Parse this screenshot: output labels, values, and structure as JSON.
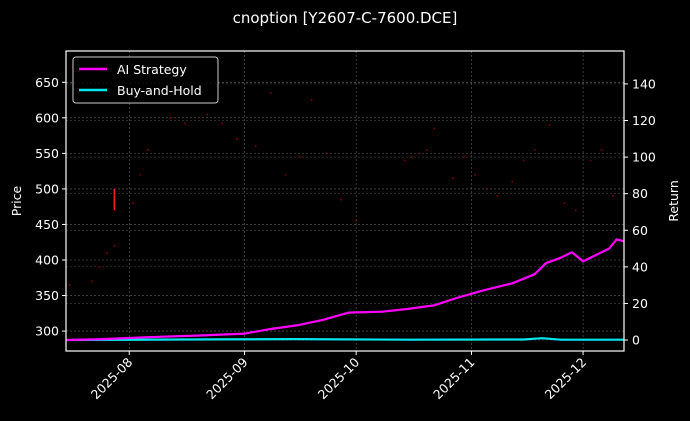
{
  "figure": {
    "background": "#000000",
    "title": "cnoption [Y2607-C-7600.DCE]"
  },
  "legend": {
    "items": [
      {
        "label": "AI Strategy",
        "color": "#ff00ff"
      },
      {
        "label": "Buy-and-Hold",
        "color": "#00e5ee"
      }
    ]
  },
  "axes": {
    "left": {
      "label": "Price",
      "ticks": [
        "300",
        "350",
        "400",
        "450",
        "500",
        "550",
        "600",
        "650"
      ]
    },
    "right": {
      "label": "Return",
      "ticks": [
        "0",
        "20",
        "40",
        "60",
        "80",
        "100",
        "120",
        "140"
      ]
    },
    "x": {
      "ticks": [
        "2025-08",
        "2025-09",
        "2025-10",
        "2025-11",
        "2025-12"
      ]
    }
  },
  "chart_data": {
    "type": "line",
    "title": "cnoption [Y2607-C-7600.DCE]",
    "xlabel": "",
    "ylabel": "Price",
    "ylabel_right": "Return",
    "x_ticks": [
      "2025-08",
      "2025-09",
      "2025-10",
      "2025-11",
      "2025-12"
    ],
    "xlim": [
      "2025-07-15",
      "2025-12-12"
    ],
    "ylim": [
      272,
      694
    ],
    "ylim_right": [
      -6,
      158
    ],
    "grid": true,
    "legend_position": "upper left",
    "series": [
      {
        "name": "AI Strategy",
        "axis": "right",
        "color": "#ff00ff",
        "x": [
          "2025-07-15",
          "2025-07-25",
          "2025-08-05",
          "2025-08-20",
          "2025-09-01",
          "2025-09-08",
          "2025-09-15",
          "2025-09-22",
          "2025-09-29",
          "2025-10-08",
          "2025-10-15",
          "2025-10-22",
          "2025-10-28",
          "2025-11-04",
          "2025-11-12",
          "2025-11-18",
          "2025-11-21",
          "2025-11-25",
          "2025-11-28",
          "2025-12-01",
          "2025-12-05",
          "2025-12-08",
          "2025-12-10",
          "2025-12-12"
        ],
        "values": [
          0,
          0.5,
          1.5,
          2.5,
          3.5,
          6,
          8,
          11,
          15,
          15.5,
          17,
          19,
          23,
          27,
          31,
          36,
          42,
          45,
          48,
          43,
          47,
          50,
          55,
          54
        ]
      },
      {
        "name": "Buy-and-Hold",
        "axis": "right",
        "color": "#00e5ee",
        "x": [
          "2025-07-15",
          "2025-08-15",
          "2025-09-15",
          "2025-10-15",
          "2025-11-15",
          "2025-11-20",
          "2025-11-25",
          "2025-12-12"
        ],
        "values": [
          0,
          0.3,
          0.5,
          0.2,
          0.3,
          1,
          0.2,
          0.2
        ]
      },
      {
        "name": "Price",
        "axis": "left",
        "type": "scatter",
        "color": "#8b0000",
        "note": "faint dark-red price markers, sparse",
        "x": [
          "2025-07-16",
          "2025-07-22",
          "2025-07-24",
          "2025-07-26",
          "2025-07-28",
          "2025-08-02",
          "2025-08-04",
          "2025-08-06",
          "2025-08-12",
          "2025-08-16",
          "2025-08-22",
          "2025-08-26",
          "2025-08-30",
          "2025-09-04",
          "2025-09-08",
          "2025-09-12",
          "2025-09-16",
          "2025-09-19",
          "2025-09-23",
          "2025-09-27",
          "2025-10-01",
          "2025-10-14",
          "2025-10-16",
          "2025-10-18",
          "2025-10-20",
          "2025-10-22",
          "2025-10-27",
          "2025-10-30",
          "2025-11-02",
          "2025-11-05",
          "2025-11-08",
          "2025-11-12",
          "2025-11-15",
          "2025-11-18",
          "2025-11-22",
          "2025-11-26",
          "2025-11-29",
          "2025-12-03",
          "2025-12-06",
          "2025-12-09"
        ],
        "values": [
          365,
          370,
          390,
          410,
          420,
          480,
          520,
          555,
          600,
          592,
          605,
          592,
          570,
          560,
          635,
          520,
          545,
          625,
          550,
          485,
          455,
          540,
          545,
          550,
          555,
          585,
          515,
          545,
          520,
          500,
          490,
          510,
          540,
          555,
          590,
          480,
          470,
          540,
          555,
          490
        ]
      },
      {
        "name": "Price range marker",
        "axis": "left",
        "type": "vline",
        "color": "#ff2020",
        "x": "2025-07-28",
        "values": [
          470,
          500
        ]
      }
    ]
  }
}
